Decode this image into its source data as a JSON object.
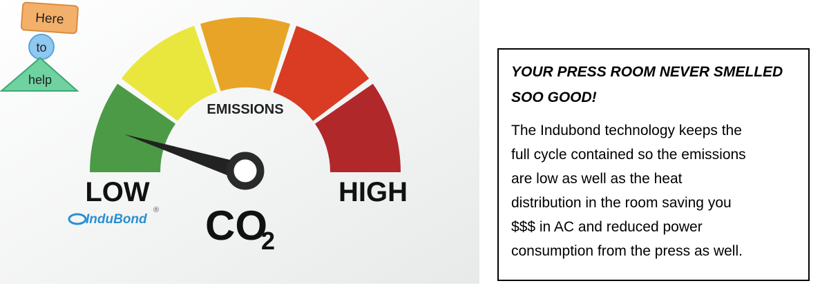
{
  "badge": [
    "Here",
    "to",
    "help"
  ],
  "gauge": {
    "label": "EMISSIONS",
    "low": "LOW",
    "high": "HIGH",
    "co": "CO",
    "subscript": "2"
  },
  "logo": {
    "name": "InduBond",
    "mark": "®"
  },
  "box": {
    "title": "YOUR PRESS ROOM NEVER SMELLED SOO GOOD!",
    "body": [
      "The Indubond technology keeps the",
      "full cycle contained so the emissions",
      "are low as well as the heat",
      "distribution in the room saving you",
      "$$$ in AC and reduced power",
      "consumption from the press as well."
    ]
  }
}
